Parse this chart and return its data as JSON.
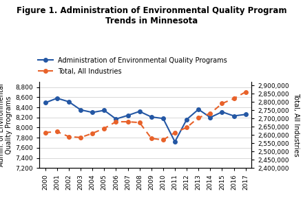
{
  "years": [
    2000,
    2001,
    2002,
    2003,
    2004,
    2005,
    2006,
    2007,
    2008,
    2009,
    2010,
    2011,
    2012,
    2013,
    2014,
    2015,
    2016,
    2017
  ],
  "blue_values": [
    8490,
    8580,
    8510,
    8350,
    8300,
    8340,
    8170,
    8240,
    8320,
    8210,
    8180,
    7720,
    8160,
    8360,
    8200,
    8310,
    8230,
    8260
  ],
  "orange_values": [
    2615000,
    2620000,
    2590000,
    2585000,
    2610000,
    2640000,
    2680000,
    2680000,
    2675000,
    2580000,
    2570000,
    2615000,
    2645000,
    2705000,
    2730000,
    2790000,
    2820000,
    2860000
  ],
  "title": "Figure 1. Administration of Environmental Quality Program\nTrends in Minnesota",
  "legend1": "Administration of Environmental Quality Programs",
  "legend2": "Total, All Industries",
  "ylabel_left": "Admin. of Environmental\nQuality Programs",
  "ylabel_right": "Total, All Industries",
  "ylim_left": [
    7200,
    8900
  ],
  "ylim_right": [
    2400000,
    2920000
  ],
  "yticks_left": [
    7200,
    7400,
    7600,
    7800,
    8000,
    8200,
    8400,
    8600,
    8800
  ],
  "yticks_right": [
    2400000,
    2450000,
    2500000,
    2550000,
    2600000,
    2650000,
    2700000,
    2750000,
    2800000,
    2850000,
    2900000
  ],
  "blue_color": "#2457A4",
  "orange_color": "#E8622A",
  "bg_color": "#FFFFFF",
  "grid_color": "#C8C8C8"
}
